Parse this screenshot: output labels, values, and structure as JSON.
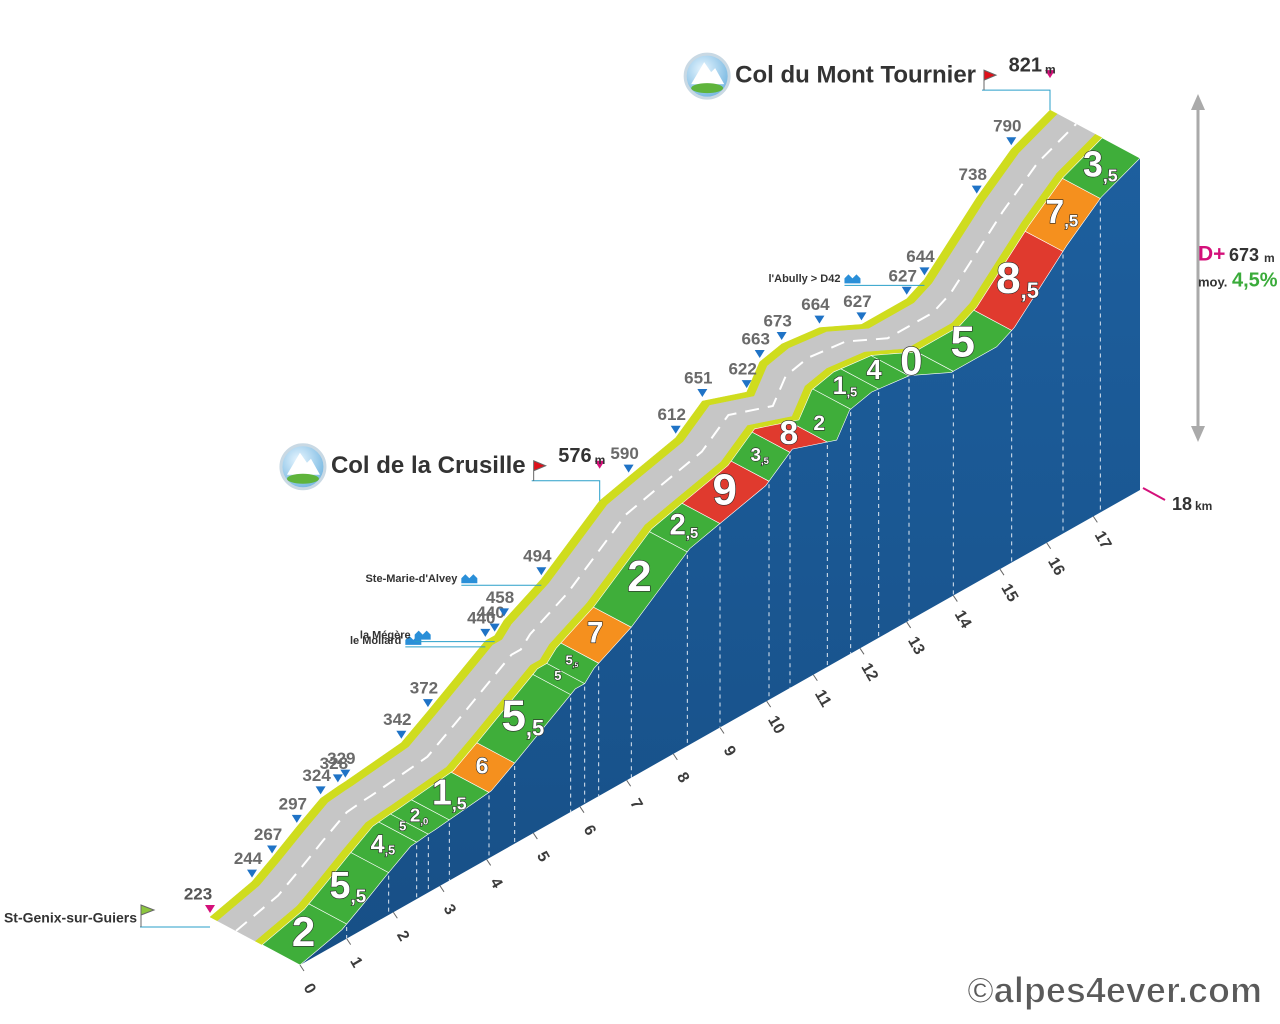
{
  "chart_data": {
    "type": "profile",
    "profile": [
      {
        "km": 0,
        "elevation": 223,
        "kind": "start",
        "name": "St-Genix-sur-Guiers"
      },
      {
        "km": 0.9,
        "elevation": 244
      },
      {
        "km": 1.33,
        "elevation": 267
      },
      {
        "km": 1.86,
        "elevation": 297
      },
      {
        "km": 2.37,
        "elevation": 324
      },
      {
        "km": 2.74,
        "elevation": 328
      },
      {
        "km": 2.9,
        "elevation": 329
      },
      {
        "km": 4.1,
        "elevation": 342
      },
      {
        "km": 4.67,
        "elevation": 372
      },
      {
        "km": 5.9,
        "elevation": 440,
        "kind": "place",
        "name": "le Mollard"
      },
      {
        "km": 6.1,
        "elevation": 440,
        "kind": "place",
        "name": "la Mégère"
      },
      {
        "km": 6.3,
        "elevation": 458
      },
      {
        "km": 7.1,
        "elevation": 494,
        "kind": "place",
        "name": "Ste-Marie-d'Alvey"
      },
      {
        "km": 8.35,
        "elevation": 576,
        "kind": "col",
        "name": "Col de la Crusille"
      },
      {
        "km": 8.97,
        "elevation": 590
      },
      {
        "km": 9.98,
        "elevation": 612
      },
      {
        "km": 10.55,
        "elevation": 651
      },
      {
        "km": 11.5,
        "elevation": 622
      },
      {
        "km": 11.78,
        "elevation": 663
      },
      {
        "km": 12.25,
        "elevation": 673
      },
      {
        "km": 13.06,
        "elevation": 664
      },
      {
        "km": 13.96,
        "elevation": 627
      },
      {
        "km": 14.93,
        "elevation": 627
      },
      {
        "km": 15.31,
        "elevation": 644,
        "kind": "place",
        "name": "l'Abully > D42"
      },
      {
        "km": 16.43,
        "elevation": 738
      },
      {
        "km": 17.17,
        "elevation": 790
      },
      {
        "km": 18,
        "elevation": 821,
        "kind": "col",
        "name": "Col du Mont Tournier"
      }
    ],
    "segments": {
      "bins": [
        0,
        1,
        1.9,
        2.5,
        2.75,
        3.2,
        4.05,
        4.6,
        5.8,
        6.1,
        6.4,
        7.1,
        8.3,
        9,
        10.05,
        10.5,
        11.3,
        11.8,
        12.4,
        13.05,
        14,
        15.25,
        16.35,
        17.15,
        18
      ],
      "values": [
        2,
        5.5,
        4.5,
        5,
        2,
        1.5,
        6,
        5.5,
        5,
        5.5,
        7,
        2,
        2.5,
        9,
        3.5,
        8,
        2,
        1.5,
        4,
        0,
        5,
        8.5,
        7.5,
        3.5
      ],
      "value_labels": [
        "2",
        "5,5",
        "4,5",
        "5",
        "2,0",
        "1,5",
        "6",
        "5,5",
        "5",
        "5,5",
        "7",
        "2",
        "2,5",
        "9",
        "3,5",
        "8",
        "2",
        "1,5",
        "4",
        "0",
        "5",
        "8,5",
        "7,5",
        "3,5"
      ],
      "colors": [
        "#3fae3a",
        "#3fae3a",
        "#3fae3a",
        "#3fae3a",
        "#3fae3a",
        "#3fae3a",
        "#f5901e",
        "#3fae3a",
        "#3fae3a",
        "#3fae3a",
        "#f5901e",
        "#3fae3a",
        "#3fae3a",
        "#e03a2e",
        "#3fae3a",
        "#e03a2e",
        "#3fae3a",
        "#3fae3a",
        "#3fae3a",
        "#3fae3a",
        "#3fae3a",
        "#e03a2e",
        "#f5901e",
        "#3fae3a"
      ]
    },
    "xlim": [
      0,
      18
    ],
    "xticks": [
      0,
      1,
      2,
      3,
      4,
      5,
      6,
      7,
      8,
      9,
      10,
      11,
      12,
      13,
      14,
      15,
      16,
      17
    ],
    "x_unit": "km",
    "elevation_unit": "m",
    "total_climb_label": "D+",
    "total_climb": 673,
    "average_label": "moy.",
    "average": "4,5%",
    "credit": "©alpes4ever.com"
  }
}
